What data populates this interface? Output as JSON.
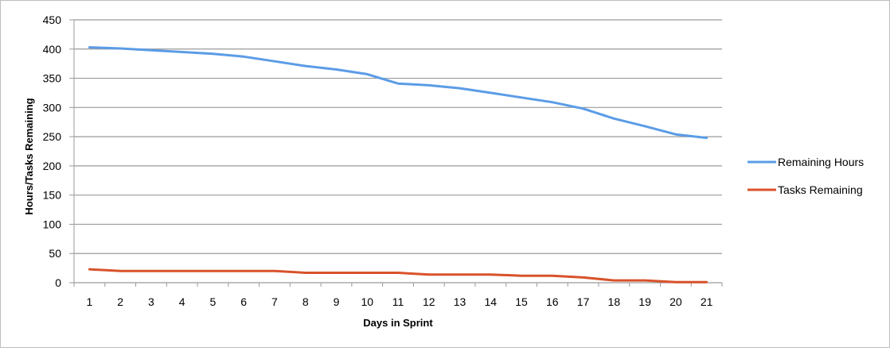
{
  "chart_data": {
    "type": "line",
    "title": "",
    "xlabel": "Days in Sprint",
    "ylabel": "Hours/Tasks Remaining",
    "categories": [
      1,
      2,
      3,
      4,
      5,
      6,
      7,
      8,
      9,
      10,
      11,
      12,
      13,
      14,
      15,
      16,
      17,
      18,
      19,
      20,
      21
    ],
    "ylim": [
      0,
      450
    ],
    "yticks": [
      0,
      50,
      100,
      150,
      200,
      250,
      300,
      350,
      400,
      450
    ],
    "grid": true,
    "legend_position": "right",
    "series": [
      {
        "name": "Remaining Hours",
        "color": "#5b9ce6",
        "values": [
          403,
          401,
          398,
          395,
          392,
          387,
          379,
          371,
          365,
          357,
          341,
          338,
          333,
          325,
          317,
          309,
          298,
          281,
          268,
          254,
          248
        ]
      },
      {
        "name": "Tasks Remaining",
        "color": "#d9522b",
        "values": [
          23,
          20,
          20,
          20,
          20,
          20,
          20,
          17,
          17,
          17,
          17,
          14,
          14,
          14,
          12,
          12,
          9,
          4,
          4,
          1,
          1
        ]
      }
    ]
  }
}
